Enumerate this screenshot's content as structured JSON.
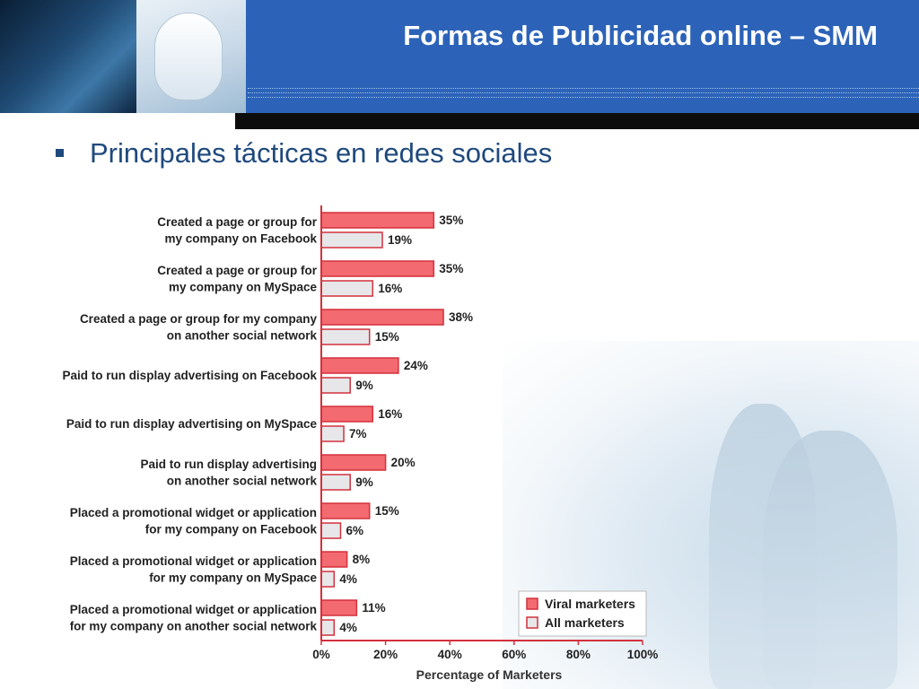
{
  "slide": {
    "title": "Formas de Publicidad online – SMM",
    "bullet": "Principales tácticas en redes sociales"
  },
  "colors": {
    "header_blue": "#2c63b8",
    "bullet_text": "#1f497d",
    "viral_fill": "#f36a70",
    "viral_stroke": "#d3313c",
    "all_fill": "#e7e7ea",
    "all_stroke": "#d3313c"
  },
  "chart_data": {
    "type": "bar",
    "orientation": "horizontal",
    "categories": [
      [
        "Created a page or group for",
        "my company on Facebook"
      ],
      [
        "Created a page or group for",
        "my company on MySpace"
      ],
      [
        "Created a page or group for my company",
        "on another social network"
      ],
      [
        "Paid to run display advertising on Facebook"
      ],
      [
        "Paid to run display advertising on MySpace"
      ],
      [
        "Paid to run display advertising",
        "on another social network"
      ],
      [
        "Placed a promotional widget or application",
        "for my company on Facebook"
      ],
      [
        "Placed a promotional widget or application",
        "for my company on MySpace"
      ],
      [
        "Placed a promotional widget or application",
        "for my company on another social network"
      ]
    ],
    "series": [
      {
        "name": "Viral marketers",
        "values": [
          35,
          35,
          38,
          24,
          16,
          20,
          15,
          8,
          11
        ]
      },
      {
        "name": "All marketers",
        "values": [
          19,
          16,
          15,
          9,
          7,
          9,
          6,
          4,
          4
        ]
      }
    ],
    "xlabel": "Percentage of Marketers",
    "xlim": [
      0,
      100
    ],
    "xticks": [
      0,
      20,
      40,
      60,
      80,
      100
    ],
    "xtick_labels": [
      "0%",
      "20%",
      "40%",
      "60%",
      "80%",
      "100%"
    ],
    "value_suffix": "%",
    "legend_position": "bottom-right"
  }
}
